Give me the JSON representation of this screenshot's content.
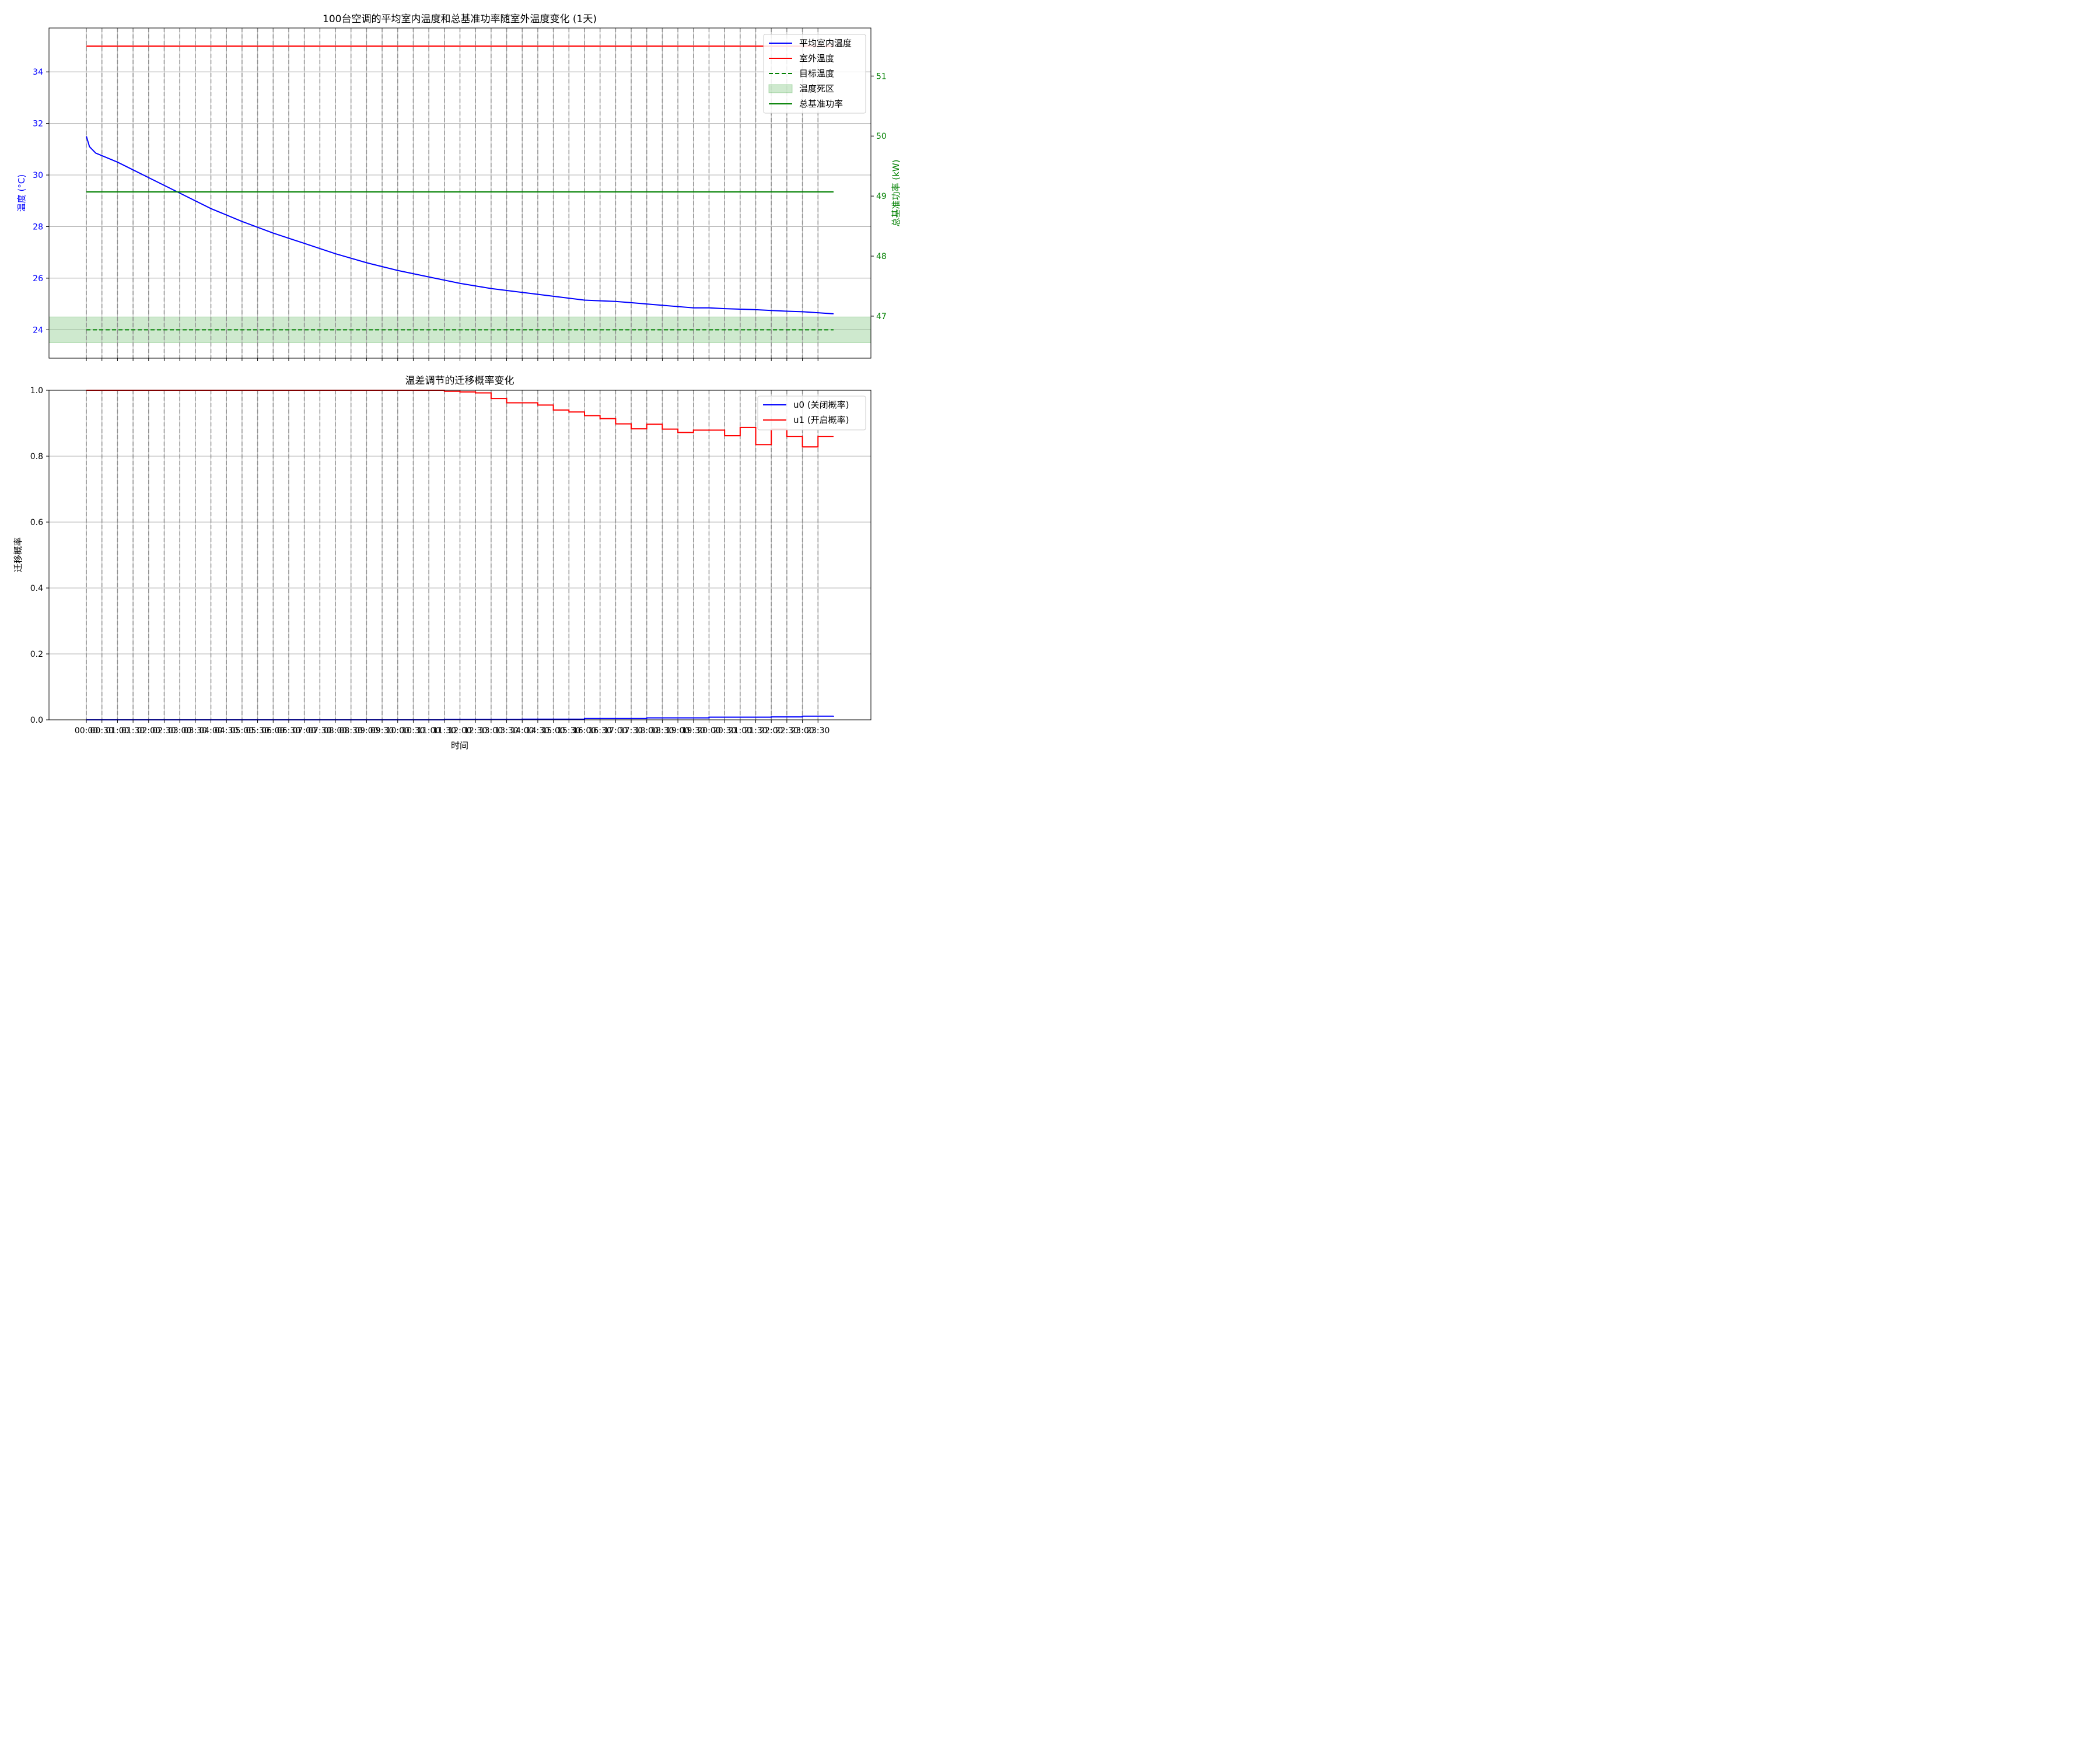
{
  "chart_data": [
    {
      "type": "line",
      "title": "100台空调的平均室内温度和总基准功率随室外温度变化 (1天)",
      "ylabel": "温度 (°C)",
      "ylabel_color": "#0000ff",
      "ylim": [
        22.9,
        35.7
      ],
      "yticks": [
        24,
        26,
        28,
        30,
        32,
        34
      ],
      "y2label": "总基准功率 (kW)",
      "y2label_color": "#008000",
      "y2lim": [
        46.3,
        51.8
      ],
      "y2ticks": [
        47,
        48,
        49,
        50,
        51
      ],
      "grid": true,
      "legend_position": "top-right",
      "legend": [
        {
          "label": "平均室内温度",
          "color": "#0000ff",
          "style": "solid"
        },
        {
          "label": "室外温度",
          "color": "#ff0000",
          "style": "solid"
        },
        {
          "label": "目标温度",
          "color": "#008000",
          "style": "dashed"
        },
        {
          "label": "温度死区",
          "color": "#2ca02c",
          "style": "patch"
        },
        {
          "label": "总基准功率",
          "color": "#008000",
          "style": "solid"
        }
      ],
      "series": [
        {
          "name": "平均室内温度",
          "axis": "left",
          "color": "#0000ff",
          "x": [
            0,
            0.1,
            0.3,
            0.6,
            1,
            1.5,
            2,
            3,
            4,
            5,
            6,
            7,
            8,
            9,
            10,
            11,
            12,
            13,
            14,
            15,
            16,
            17,
            17.5,
            18,
            18.5,
            19,
            19.5,
            20,
            20.5,
            21,
            21.5,
            22,
            22.5,
            23,
            23.5,
            24
          ],
          "y": [
            31.5,
            31.1,
            30.85,
            30.7,
            30.5,
            30.2,
            29.9,
            29.3,
            28.7,
            28.2,
            27.75,
            27.35,
            26.95,
            26.6,
            26.3,
            26.05,
            25.8,
            25.6,
            25.45,
            25.3,
            25.15,
            25.1,
            25.05,
            25.0,
            24.95,
            24.9,
            24.85,
            24.85,
            24.82,
            24.8,
            24.78,
            24.75,
            24.72,
            24.7,
            24.66,
            24.62
          ]
        },
        {
          "name": "室外温度",
          "axis": "left",
          "color": "#ff0000",
          "x": [
            0,
            24
          ],
          "y": [
            35,
            35
          ]
        },
        {
          "name": "目标温度",
          "axis": "left",
          "color": "#008000",
          "x": [
            0,
            24
          ],
          "y": [
            24,
            24
          ]
        },
        {
          "name": "总基准功率",
          "axis": "right",
          "color": "#008000",
          "x": [
            0,
            24
          ],
          "y": [
            49.07,
            49.07
          ]
        }
      ],
      "band": {
        "name": "温度死区",
        "y0": 23.5,
        "y1": 24.5,
        "color": "#2ca02c"
      }
    },
    {
      "type": "line",
      "title": "温差调节的迁移概率变化",
      "ylabel": "迁移概率",
      "xlabel": "时间",
      "ylim": [
        0,
        1
      ],
      "yticks": [
        "0.0",
        "0.2",
        "0.4",
        "0.6",
        "0.8",
        "1.0"
      ],
      "grid": true,
      "legend_position": "top-right",
      "legend": [
        {
          "label": "u0 (关闭概率)",
          "color": "#0000ff",
          "style": "solid"
        },
        {
          "label": "u1 (开启概率)",
          "color": "#ff0000",
          "style": "solid"
        }
      ],
      "series": [
        {
          "name": "u0 (关闭概率)",
          "color": "#0000ff",
          "step": true,
          "x": [
            0,
            11.5,
            14,
            16,
            18,
            20,
            22,
            23,
            24
          ],
          "y": [
            0,
            0.001,
            0.002,
            0.004,
            0.006,
            0.008,
            0.009,
            0.011,
            0.012
          ]
        },
        {
          "name": "u1 (开启概率)",
          "color": "#ff0000",
          "step": true,
          "x": [
            0,
            11.5,
            12,
            12.5,
            13,
            13.5,
            14,
            14.5,
            15,
            15.5,
            16,
            16.5,
            17,
            17.5,
            18,
            18.5,
            19,
            19.5,
            20,
            20.5,
            21,
            21.5,
            22,
            22.5,
            23,
            23.5,
            24
          ],
          "y": [
            1.0,
            0.997,
            0.995,
            0.992,
            0.975,
            0.962,
            0.962,
            0.955,
            0.94,
            0.934,
            0.923,
            0.914,
            0.898,
            0.883,
            0.897,
            0.882,
            0.872,
            0.879,
            0.879,
            0.862,
            0.887,
            0.835,
            0.882,
            0.86,
            0.828,
            0.86,
            0.86
          ]
        }
      ]
    }
  ],
  "x_axis": {
    "tick_labels": [
      "00:00",
      "00:30",
      "01:00",
      "01:30",
      "02:00",
      "02:30",
      "03:00",
      "03:30",
      "04:00",
      "04:30",
      "05:00",
      "05:30",
      "06:00",
      "06:30",
      "07:00",
      "07:30",
      "08:00",
      "08:30",
      "09:00",
      "09:30",
      "10:00",
      "10:30",
      "11:00",
      "11:30",
      "12:00",
      "12:30",
      "13:00",
      "13:30",
      "14:00",
      "14:30",
      "15:00",
      "15:30",
      "16:00",
      "16:30",
      "17:00",
      "17:30",
      "18:00",
      "18:30",
      "19:00",
      "19:30",
      "20:00",
      "20:30",
      "21:00",
      "21:30",
      "22:00",
      "22:30",
      "23:00",
      "23:30"
    ],
    "range_hours": [
      -1.2,
      25.2
    ],
    "vline_color": "#808080"
  }
}
